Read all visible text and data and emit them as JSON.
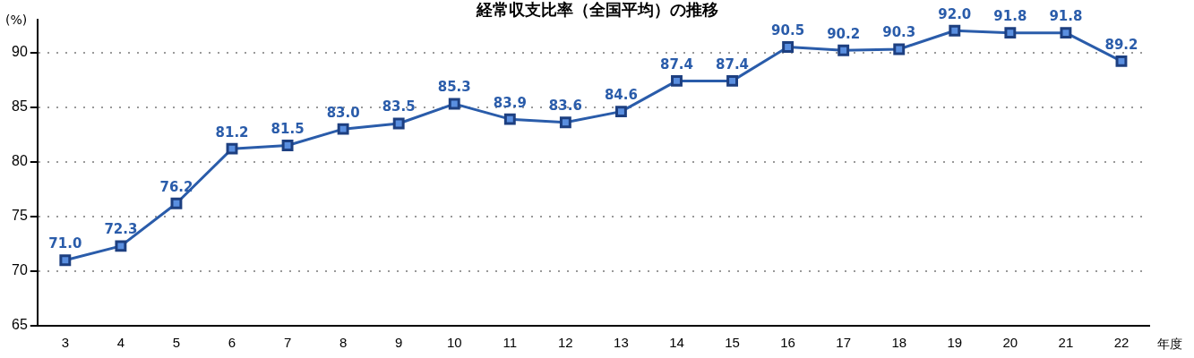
{
  "chart_data": {
    "type": "line",
    "title": "経常収支比率（全国平均）の推移",
    "xlabel": "年度",
    "ylabel": "(%)",
    "categories": [
      "3",
      "4",
      "5",
      "6",
      "7",
      "8",
      "9",
      "10",
      "11",
      "12",
      "13",
      "14",
      "15",
      "16",
      "17",
      "18",
      "19",
      "20",
      "21",
      "22"
    ],
    "series": [
      {
        "color": "#2a5caa",
        "values": [
          71.0,
          72.3,
          76.2,
          81.2,
          81.5,
          83.0,
          83.5,
          85.3,
          83.9,
          83.6,
          84.6,
          87.4,
          87.4,
          90.5,
          90.2,
          90.3,
          92.0,
          91.8,
          91.8,
          89.2
        ]
      }
    ],
    "value_labels": [
      "71.0",
      "72.3",
      "76.2",
      "81.2",
      "81.5",
      "83.0",
      "83.5",
      "85.3",
      "83.9",
      "83.6",
      "84.6",
      "87.4",
      "87.4",
      "90.5",
      "90.2",
      "90.3",
      "92.0",
      "91.8",
      "91.8",
      "89.2"
    ],
    "ylim": [
      65,
      93
    ],
    "yticks": [
      65,
      70,
      75,
      80,
      85,
      90
    ],
    "grid": "y",
    "marker": "square",
    "line_style": "solid",
    "legend": false
  }
}
